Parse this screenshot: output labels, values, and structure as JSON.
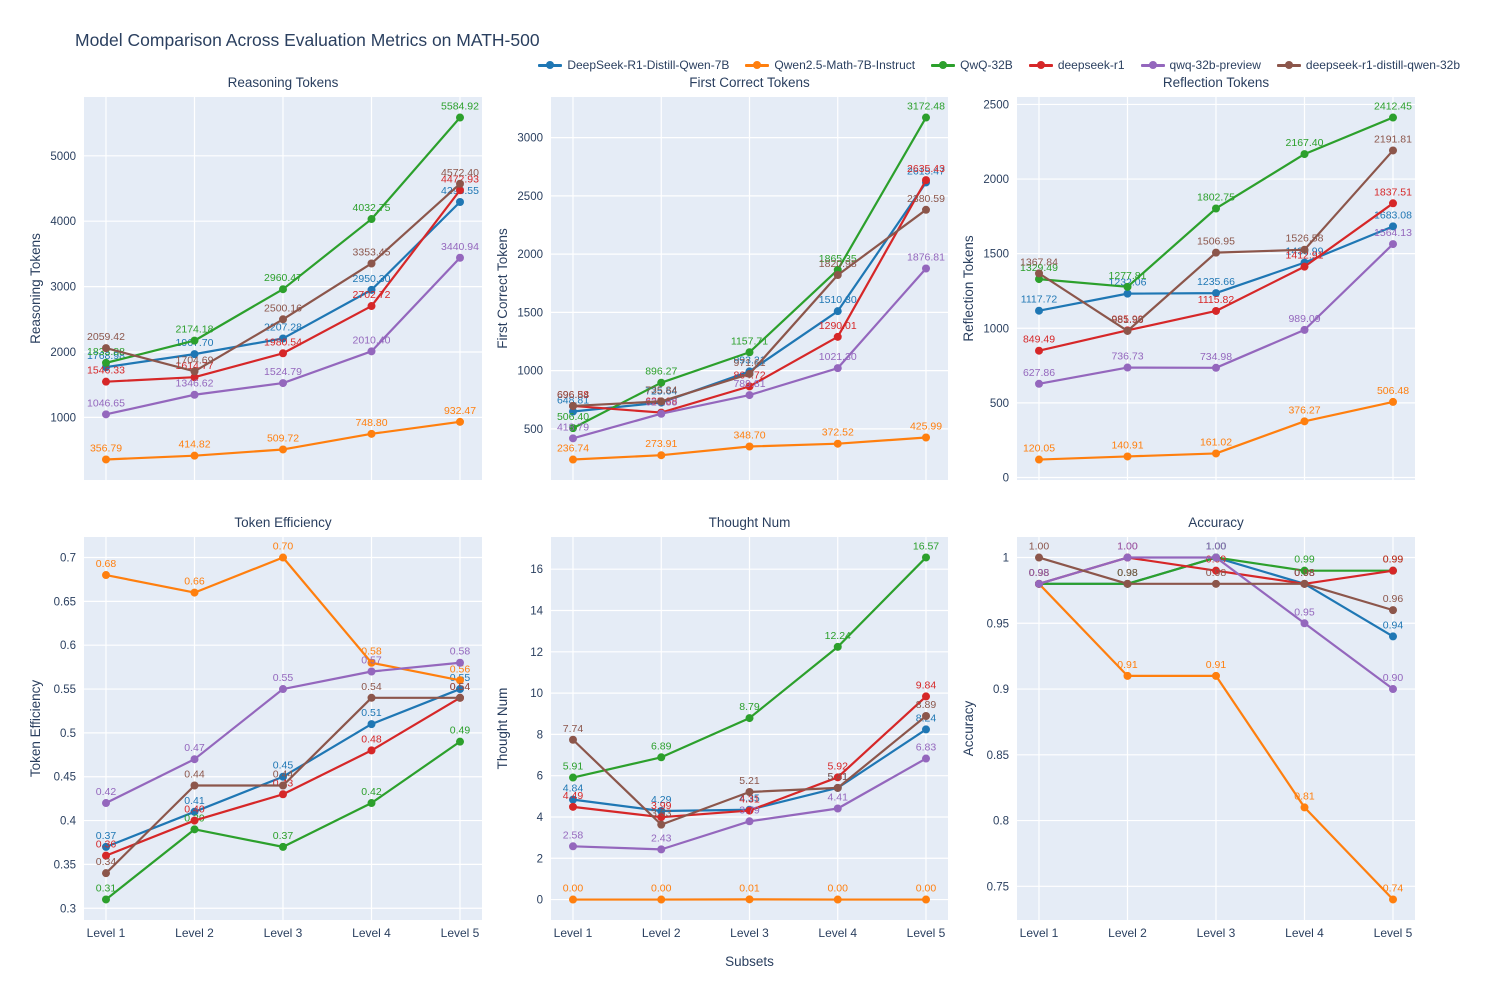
{
  "title": "Model Comparison Across Evaluation Metrics on MATH-500",
  "xaxis": {
    "label": "Subsets",
    "categories": [
      "Level 1",
      "Level 2",
      "Level 3",
      "Level 4",
      "Level 5"
    ]
  },
  "plot_bg_color": "#E5ECF6",
  "text_color": "#2a3f5f",
  "legend": {
    "items": [
      {
        "label": "DeepSeek-R1-Distill-Qwen-7B",
        "color": "#1f77b4"
      },
      {
        "label": "Qwen2.5-Math-7B-Instruct",
        "color": "#ff7f0e"
      },
      {
        "label": "QwQ-32B",
        "color": "#2ca02c"
      },
      {
        "label": "deepseek-r1",
        "color": "#d62728"
      },
      {
        "label": "qwq-32b-preview",
        "color": "#9467bd"
      },
      {
        "label": "deepseek-r1-distill-qwen-32b",
        "color": "#8c564b"
      }
    ]
  },
  "chart_data": [
    {
      "type": "line",
      "title": "Reasoning Tokens",
      "ylabel": "Reasoning Tokens",
      "categories": [
        "Level 1",
        "Level 2",
        "Level 3",
        "Level 4",
        "Level 5"
      ],
      "ylim": [
        43,
        5899
      ],
      "ytick_values": [
        1000,
        2000,
        3000,
        4000,
        5000
      ],
      "ytick_labels": [
        "1000",
        "2000",
        "3000",
        "4000",
        "5000"
      ],
      "series": [
        {
          "name": "DeepSeek-R1-Distill-Qwen-7B",
          "values": [
            1768.98,
            1967.7,
            2207.28,
            2950.3,
            4293.55
          ]
        },
        {
          "name": "Qwen2.5-Math-7B-Instruct",
          "values": [
            356.79,
            414.82,
            509.72,
            748.8,
            932.47
          ]
        },
        {
          "name": "QwQ-32B",
          "values": [
            1833.88,
            2174.18,
            2960.47,
            4032.75,
            5584.92
          ]
        },
        {
          "name": "deepseek-r1",
          "values": [
            1546.33,
            1614.77,
            1980.54,
            2702.72,
            4472.93
          ]
        },
        {
          "name": "qwq-32b-preview",
          "values": [
            1046.65,
            1346.62,
            1524.79,
            2010.4,
            3440.94
          ]
        },
        {
          "name": "deepseek-r1-distill-qwen-32b",
          "values": [
            2059.42,
            1704.69,
            2500.16,
            3353.45,
            4572.4
          ]
        }
      ]
    },
    {
      "type": "line",
      "title": "First Correct Tokens",
      "ylabel": "First Correct Tokens",
      "categories": [
        "Level 1",
        "Level 2",
        "Level 3",
        "Level 4",
        "Level 5"
      ],
      "ylim": [
        61,
        3349
      ],
      "ytick_values": [
        500,
        1000,
        1500,
        2000,
        2500,
        3000
      ],
      "ytick_labels": [
        "500",
        "1000",
        "1500",
        "2000",
        "2500",
        "3000"
      ],
      "series": [
        {
          "name": "DeepSeek-R1-Distill-Qwen-7B",
          "values": [
            648.81,
            725.64,
            993.21,
            1510.3,
            2615.47
          ]
        },
        {
          "name": "Qwen2.5-Math-7B-Instruct",
          "values": [
            236.74,
            273.91,
            348.7,
            372.52,
            425.99
          ]
        },
        {
          "name": "QwQ-32B",
          "values": [
            506.4,
            896.27,
            1157.71,
            1865.35,
            3172.48
          ]
        },
        {
          "name": "deepseek-r1",
          "values": [
            696.58,
            639.88,
            864.72,
            1290.01,
            2635.43
          ]
        },
        {
          "name": "qwq-32b-preview",
          "values": [
            418.79,
            629.88,
            789.81,
            1021.3,
            1876.81
          ]
        },
        {
          "name": "deepseek-r1-distill-qwen-32b",
          "values": [
            696.84,
            735.84,
            971.61,
            1820.98,
            2380.59
          ]
        }
      ]
    },
    {
      "type": "line",
      "title": "Reflection Tokens",
      "ylabel": "Reflection Tokens",
      "categories": [
        "Level 1",
        "Level 2",
        "Level 3",
        "Level 4",
        "Level 5"
      ],
      "ylim": [
        -17,
        2550
      ],
      "ytick_values": [
        0,
        500,
        1000,
        1500,
        2000,
        2500
      ],
      "ytick_labels": [
        "0",
        "500",
        "1000",
        "1500",
        "2000",
        "2500"
      ],
      "series": [
        {
          "name": "DeepSeek-R1-Distill-Qwen-7B",
          "values": [
            1117.72,
            1232.06,
            1235.66,
            1439.99,
            1683.08
          ]
        },
        {
          "name": "Qwen2.5-Math-7B-Instruct",
          "values": [
            120.05,
            140.91,
            161.02,
            376.27,
            506.48
          ]
        },
        {
          "name": "QwQ-32B",
          "values": [
            1329.49,
            1277.81,
            1802.75,
            2167.4,
            2412.45
          ]
        },
        {
          "name": "deepseek-r1",
          "values": [
            849.49,
            985.99,
            1115.82,
            1412.91,
            1837.51
          ]
        },
        {
          "name": "qwq-32b-preview",
          "values": [
            627.86,
            736.73,
            734.98,
            989.09,
            1564.13
          ]
        },
        {
          "name": "deepseek-r1-distill-qwen-32b",
          "values": [
            1367.84,
            981.96,
            1506.95,
            1526.58,
            2191.81
          ]
        }
      ]
    },
    {
      "type": "line",
      "title": "Token Efficiency",
      "ylabel": "Token Efficiency",
      "categories": [
        "Level 1",
        "Level 2",
        "Level 3",
        "Level 4",
        "Level 5"
      ],
      "ylim": [
        0.2866,
        0.7234
      ],
      "ytick_values": [
        0.3,
        0.35,
        0.4,
        0.45,
        0.5,
        0.55,
        0.6,
        0.65,
        0.7
      ],
      "ytick_labels": [
        "0.3",
        "0.35",
        "0.4",
        "0.45",
        "0.5",
        "0.55",
        "0.6",
        "0.65",
        "0.7"
      ],
      "series": [
        {
          "name": "DeepSeek-R1-Distill-Qwen-7B",
          "values": [
            0.37,
            0.41,
            0.45,
            0.51,
            0.55
          ]
        },
        {
          "name": "Qwen2.5-Math-7B-Instruct",
          "values": [
            0.68,
            0.66,
            0.7,
            0.58,
            0.56
          ]
        },
        {
          "name": "QwQ-32B",
          "values": [
            0.31,
            0.39,
            0.37,
            0.42,
            0.49
          ]
        },
        {
          "name": "deepseek-r1",
          "values": [
            0.36,
            0.4,
            0.43,
            0.48,
            0.54
          ]
        },
        {
          "name": "qwq-32b-preview",
          "values": [
            0.42,
            0.47,
            0.55,
            0.57,
            0.58
          ]
        },
        {
          "name": "deepseek-r1-distill-qwen-32b",
          "values": [
            0.34,
            0.44,
            0.44,
            0.54,
            0.54
          ]
        }
      ]
    },
    {
      "type": "line",
      "title": "Thought Num",
      "ylabel": "Thought Num",
      "categories": [
        "Level 1",
        "Level 2",
        "Level 3",
        "Level 4",
        "Level 5"
      ],
      "ylim": [
        -0.99,
        17.56
      ],
      "ytick_values": [
        0,
        2,
        4,
        6,
        8,
        10,
        12,
        14,
        16
      ],
      "ytick_labels": [
        "0",
        "2",
        "4",
        "6",
        "8",
        "10",
        "12",
        "14",
        "16"
      ],
      "series": [
        {
          "name": "DeepSeek-R1-Distill-Qwen-7B",
          "values": [
            4.84,
            4.29,
            4.35,
            5.41,
            8.24
          ]
        },
        {
          "name": "Qwen2.5-Math-7B-Instruct",
          "values": [
            0.0,
            0.0,
            0.01,
            0.0,
            0.0
          ]
        },
        {
          "name": "QwQ-32B",
          "values": [
            5.91,
            6.89,
            8.79,
            12.24,
            16.57
          ]
        },
        {
          "name": "deepseek-r1",
          "values": [
            4.49,
            3.99,
            4.31,
            5.92,
            9.84
          ]
        },
        {
          "name": "qwq-32b-preview",
          "values": [
            2.58,
            2.43,
            3.79,
            4.41,
            6.83
          ]
        },
        {
          "name": "deepseek-r1-distill-qwen-32b",
          "values": [
            7.74,
            3.63,
            5.21,
            5.41,
            8.89
          ]
        }
      ]
    },
    {
      "type": "line",
      "title": "Accuracy",
      "ylabel": "Accuracy",
      "categories": [
        "Level 1",
        "Level 2",
        "Level 3",
        "Level 4",
        "Level 5"
      ],
      "ylim": [
        0.7244,
        1.0156
      ],
      "ytick_values": [
        0.75,
        0.8,
        0.85,
        0.9,
        0.95,
        1
      ],
      "ytick_labels": [
        "0.75",
        "0.8",
        "0.85",
        "0.9",
        "0.95",
        "1"
      ],
      "series": [
        {
          "name": "DeepSeek-R1-Distill-Qwen-7B",
          "values": [
            0.98,
            0.98,
            1.0,
            0.98,
            0.94
          ]
        },
        {
          "name": "Qwen2.5-Math-7B-Instruct",
          "values": [
            0.98,
            0.91,
            0.91,
            0.81,
            0.74
          ]
        },
        {
          "name": "QwQ-32B",
          "values": [
            0.98,
            0.98,
            1.0,
            0.99,
            0.99
          ]
        },
        {
          "name": "deepseek-r1",
          "values": [
            0.98,
            1.0,
            0.99,
            0.98,
            0.99
          ]
        },
        {
          "name": "qwq-32b-preview",
          "values": [
            0.98,
            1.0,
            1.0,
            0.95,
            0.9
          ]
        },
        {
          "name": "deepseek-r1-distill-qwen-32b",
          "values": [
            1.0,
            0.98,
            0.98,
            0.98,
            0.96
          ]
        }
      ]
    }
  ]
}
